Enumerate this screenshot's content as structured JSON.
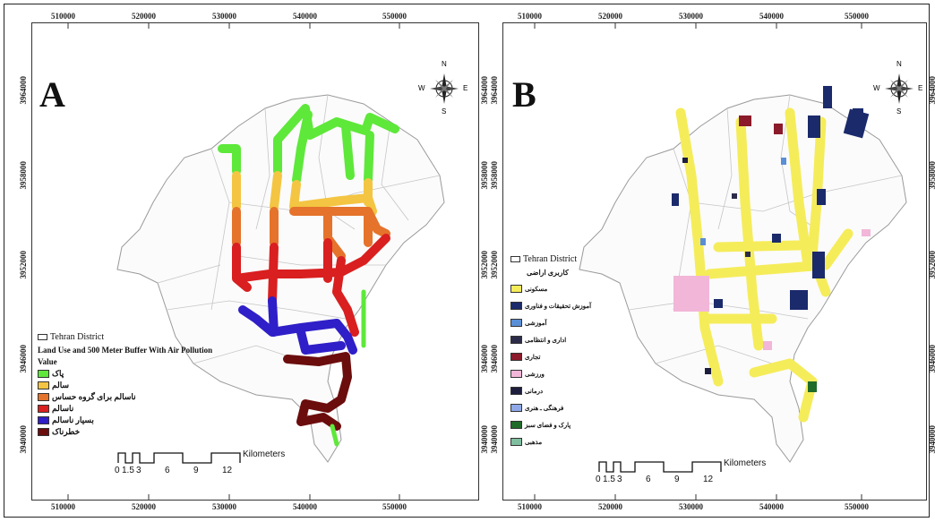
{
  "panelA": {
    "letter": "A",
    "x_ticks": [
      "510000",
      "520000",
      "530000",
      "540000",
      "550000"
    ],
    "y_ticks": [
      "3964000",
      "3958000",
      "3952000",
      "3946000",
      "3940000"
    ],
    "compass": {
      "n": "N",
      "s": "S",
      "e": "E",
      "w": "W"
    },
    "legend": {
      "district": "Tehran District",
      "title": "Land Use and 500 Meter Buffer With Air Pollution",
      "subtitle": "Value",
      "items": [
        {
          "label": "پاک",
          "color": "#5ee83a"
        },
        {
          "label": "سالم",
          "color": "#f4c542"
        },
        {
          "label": "ناسالم برای گروه حساس",
          "color": "#e5732c"
        },
        {
          "label": "ناسالم",
          "color": "#d91f1f"
        },
        {
          "label": "بسیار ناسالم",
          "color": "#2f1fc8"
        },
        {
          "label": "خطرناک",
          "color": "#6b0d0d"
        }
      ]
    },
    "scale": {
      "labels": [
        "0",
        "1.5",
        "3",
        "6",
        "9",
        "12"
      ],
      "unit": "Kilometers"
    }
  },
  "panelB": {
    "letter": "B",
    "x_ticks": [
      "510000",
      "520000",
      "530000",
      "540000",
      "550000"
    ],
    "y_ticks": [
      "3964000",
      "3958000",
      "3952000",
      "3946000",
      "3940000"
    ],
    "compass": {
      "n": "N",
      "s": "S",
      "e": "E",
      "w": "W"
    },
    "legend": {
      "district": "Tehran District",
      "title": "کاربری اراضی",
      "items": [
        {
          "label": "مسکونی",
          "color": "#f5ec5a"
        },
        {
          "label": "آموزش تحقیقات و فناوری",
          "color": "#1b2a6b"
        },
        {
          "label": "آموزشی",
          "color": "#5a8fd6"
        },
        {
          "label": "اداری و انتظامی",
          "color": "#2c2c4a"
        },
        {
          "label": "تجاری",
          "color": "#8b1a2a"
        },
        {
          "label": "ورزشی",
          "color": "#f2b6d8"
        },
        {
          "label": "درمانی",
          "color": "#1d1d3d"
        },
        {
          "label": "فرهنگی ـ هنری",
          "color": "#8fa9e8"
        },
        {
          "label": "پارک و فضای سبز",
          "color": "#1f6b2a"
        },
        {
          "label": "مذهبی",
          "color": "#7fbfa0"
        }
      ]
    },
    "scale": {
      "labels": [
        "0",
        "1.5",
        "3",
        "6",
        "9",
        "12"
      ],
      "unit": "Kilometers"
    }
  }
}
